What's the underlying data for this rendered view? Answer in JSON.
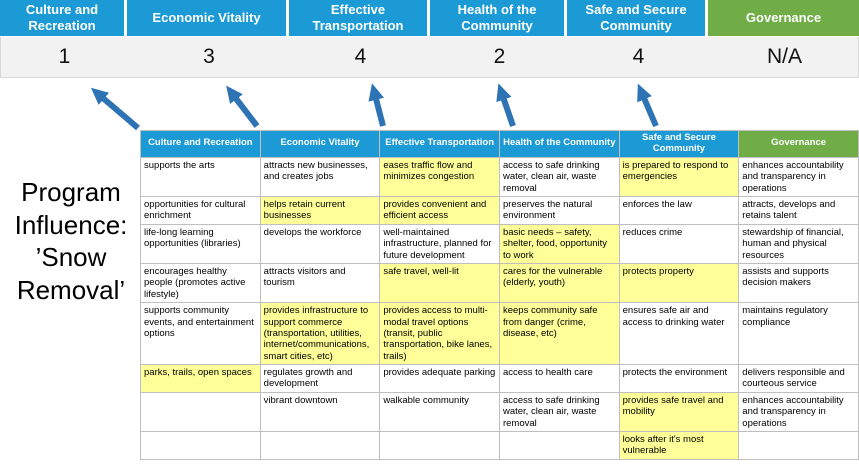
{
  "title": "Program Influence: ’Snow Removal’",
  "colors": {
    "pillar_blue": "#1b9ad5",
    "governance_green": "#70ad47",
    "highlight_yellow": "#ffff99",
    "arrow_blue": "#2e74b5",
    "score_band_gray": "#f2f2f2"
  },
  "scoreboard": {
    "columns": [
      {
        "label": "Culture and Recreation",
        "score": "1",
        "color": "#1b9ad5"
      },
      {
        "label": "Economic Vitality",
        "score": "3",
        "color": "#1b9ad5"
      },
      {
        "label": "Effective Transportation",
        "score": "4",
        "color": "#1b9ad5"
      },
      {
        "label": "Health of the Community",
        "score": "2",
        "color": "#1b9ad5"
      },
      {
        "label": "Safe and Secure Community",
        "score": "4",
        "color": "#1b9ad5"
      },
      {
        "label": "Governance",
        "score": "N/A",
        "color": "#70ad47"
      }
    ]
  },
  "matrix": {
    "headers": [
      {
        "label": "Culture and Recreation",
        "color": "#1b9ad5"
      },
      {
        "label": "Economic Vitality",
        "color": "#1b9ad5"
      },
      {
        "label": "Effective Transportation",
        "color": "#1b9ad5"
      },
      {
        "label": "Health of the Community",
        "color": "#1b9ad5"
      },
      {
        "label": "Safe and Secure Community",
        "color": "#1b9ad5"
      },
      {
        "label": "Governance",
        "color": "#70ad47"
      }
    ],
    "rows": [
      [
        {
          "text": "supports the arts",
          "hl": false
        },
        {
          "text": "attracts new businesses, and creates jobs",
          "hl": false
        },
        {
          "text": "eases traffic flow and minimizes congestion",
          "hl": true
        },
        {
          "text": "access to safe drinking water, clean air, waste removal",
          "hl": false
        },
        {
          "text": "is prepared to respond to emergencies",
          "hl": true
        },
        {
          "text": "enhances accountability and transparency in operations",
          "hl": false
        }
      ],
      [
        {
          "text": "opportunities for cultural enrichment",
          "hl": false
        },
        {
          "text": "helps retain current businesses",
          "hl": true
        },
        {
          "text": "provides convenient and efficient access",
          "hl": true
        },
        {
          "text": "preserves the natural environment",
          "hl": false
        },
        {
          "text": "enforces the law",
          "hl": false
        },
        {
          "text": "attracts, develops and retains talent",
          "hl": false
        }
      ],
      [
        {
          "text": "life-long learning opportunities (libraries)",
          "hl": false
        },
        {
          "text": "develops the workforce",
          "hl": false
        },
        {
          "text": "well-maintained infrastructure, planned for future development",
          "hl": false
        },
        {
          "text": "basic needs – safety, shelter, food, opportunity to work",
          "hl": true
        },
        {
          "text": "reduces crime",
          "hl": false
        },
        {
          "text": "stewardship of financial, human and physical resources",
          "hl": false
        }
      ],
      [
        {
          "text": "encourages healthy people (promotes active lifestyle)",
          "hl": false
        },
        {
          "text": "attracts visitors and tourism",
          "hl": false
        },
        {
          "text": "safe travel, well-lit",
          "hl": true
        },
        {
          "text": "cares for the vulnerable (elderly, youth)",
          "hl": true
        },
        {
          "text": "protects property",
          "hl": true
        },
        {
          "text": "assists and supports decision makers",
          "hl": false
        }
      ],
      [
        {
          "text": "supports community events, and entertainment options",
          "hl": false
        },
        {
          "text": "provides infrastructure to support commerce (transportation, utilities, internet/communications, smart cities, etc)",
          "hl": true
        },
        {
          "text": "provides access to multi-modal travel options (transit, public transportation, bike lanes, trails)",
          "hl": true
        },
        {
          "text": "keeps community safe from danger (crime, disease, etc)",
          "hl": true
        },
        {
          "text": "ensures safe air and access to drinking water",
          "hl": false
        },
        {
          "text": "maintains regulatory compliance",
          "hl": false
        }
      ],
      [
        {
          "text": "parks, trails, open spaces",
          "hl": true
        },
        {
          "text": "regulates growth and development",
          "hl": false
        },
        {
          "text": "provides adequate parking",
          "hl": false
        },
        {
          "text": "access to health care",
          "hl": false
        },
        {
          "text": "protects the environment",
          "hl": false
        },
        {
          "text": "delivers responsible and courteous service",
          "hl": false
        }
      ],
      [
        {
          "text": "",
          "hl": false
        },
        {
          "text": "vibrant downtown",
          "hl": false
        },
        {
          "text": "walkable community",
          "hl": false
        },
        {
          "text": "access to safe drinking water, clean air, waste removal",
          "hl": false
        },
        {
          "text": "provides safe travel and mobility",
          "hl": true
        },
        {
          "text": "enhances accountability and transparency in operations",
          "hl": false
        }
      ],
      [
        {
          "text": "",
          "hl": false
        },
        {
          "text": "",
          "hl": false
        },
        {
          "text": "",
          "hl": false
        },
        {
          "text": "",
          "hl": false
        },
        {
          "text": "looks after it's most vulnerable",
          "hl": true
        },
        {
          "text": "",
          "hl": false
        }
      ]
    ]
  },
  "arrows": {
    "count": 5,
    "direction": "up",
    "color": "#2e74b5"
  }
}
